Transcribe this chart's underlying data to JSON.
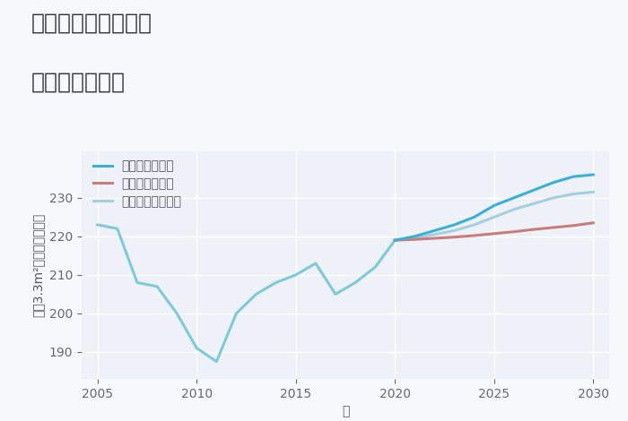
{
  "title_line1": "東京都清瀬市野塩の",
  "title_line2": "土地の価格推移",
  "xlabel": "年",
  "ylabel": "坪（3.3m²）単価（万円）",
  "background_color": "#f7f8fc",
  "plot_bg_color": "#eef2f8",
  "historical_years": [
    2005,
    2006,
    2007,
    2008,
    2009,
    2010,
    2011,
    2012,
    2013,
    2014,
    2015,
    2016,
    2017,
    2018,
    2019,
    2020
  ],
  "historical_values": [
    223,
    222,
    208,
    207,
    200,
    191,
    187.5,
    200,
    205,
    208,
    210,
    213,
    205,
    208,
    212,
    219
  ],
  "good_years": [
    2020,
    2021,
    2022,
    2023,
    2024,
    2025,
    2026,
    2027,
    2028,
    2029,
    2030
  ],
  "good_values": [
    219,
    220,
    221.5,
    223,
    225,
    228,
    230,
    232,
    234,
    235.5,
    236
  ],
  "bad_years": [
    2020,
    2021,
    2022,
    2023,
    2024,
    2025,
    2026,
    2027,
    2028,
    2029,
    2030
  ],
  "bad_values": [
    219,
    219.2,
    219.5,
    219.8,
    220.2,
    220.7,
    221.2,
    221.8,
    222.3,
    222.8,
    223.5
  ],
  "normal_years": [
    2020,
    2021,
    2022,
    2023,
    2024,
    2025,
    2026,
    2027,
    2028,
    2029,
    2030
  ],
  "normal_values": [
    219,
    219.5,
    220.5,
    221.5,
    223,
    225,
    227,
    228.5,
    230,
    231,
    231.5
  ],
  "historical_color": "#7ecad9",
  "good_color": "#3ab0d8",
  "bad_color": "#c97c7c",
  "normal_color": "#a4cfe0",
  "legend_good": "グッドシナリオ",
  "legend_bad": "バッドシナリオ",
  "legend_normal": "ノーマルシナリオ",
  "ylim": [
    183,
    242
  ],
  "xlim": [
    2004.2,
    2030.8
  ],
  "yticks": [
    190,
    200,
    210,
    220,
    230
  ],
  "xticks": [
    2005,
    2010,
    2015,
    2020,
    2025,
    2030
  ],
  "title_fontsize": 18,
  "axis_fontsize": 10,
  "tick_fontsize": 10,
  "legend_fontsize": 10,
  "line_width": 2.2
}
